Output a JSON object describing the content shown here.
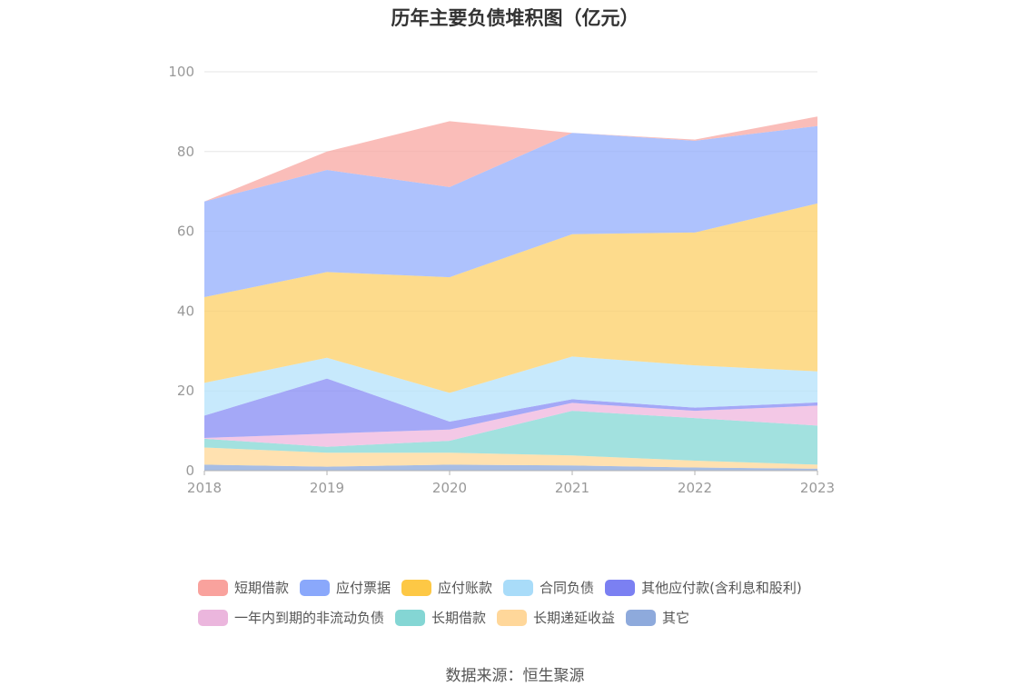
{
  "chart_data": {
    "type": "area",
    "stacked": true,
    "title": "历年主要负债堆积图（亿元）",
    "x": [
      "2018",
      "2019",
      "2020",
      "2021",
      "2022",
      "2023"
    ],
    "ylim": [
      0,
      100
    ],
    "yticks": [
      0,
      20,
      40,
      60,
      80,
      100
    ],
    "grid": true,
    "legend_position": "bottom",
    "series": [
      {
        "name": "其它",
        "color": "#8eaadc",
        "values": [
          1.5,
          1.0,
          1.5,
          1.3,
          0.8,
          0.5
        ]
      },
      {
        "name": "长期递延收益",
        "color": "#ffd99a",
        "values": [
          4.3,
          3.5,
          3.0,
          2.5,
          1.7,
          1.0
        ]
      },
      {
        "name": "长期借款",
        "color": "#88d8d6",
        "values": [
          2.2,
          1.5,
          3.0,
          11.2,
          10.7,
          9.8
        ]
      },
      {
        "name": "一年内到期的非流动负债",
        "color": "#efb9df",
        "values": [
          0.2,
          3.3,
          2.8,
          2.0,
          1.8,
          5.0
        ]
      },
      {
        "name": "其他应付款(含利息和股利)",
        "color": "#8a8ff5",
        "values": [
          5.6,
          13.8,
          2.0,
          0.9,
          0.8,
          0.8
        ]
      },
      {
        "name": "合同负债",
        "color": "#b7e3fb",
        "values": [
          8.2,
          5.2,
          7.2,
          10.7,
          10.6,
          7.8
        ]
      },
      {
        "name": "应付账款",
        "color": "#fdd16c",
        "values": [
          21.5,
          21.5,
          29.0,
          30.7,
          33.3,
          42.1
        ]
      },
      {
        "name": "应付票据",
        "color": "#97b1fd",
        "values": [
          24.0,
          25.6,
          22.6,
          25.4,
          23.0,
          19.4
        ]
      },
      {
        "name": "短期借款",
        "color": "#f9aaa5",
        "values": [
          0.0,
          4.6,
          16.5,
          0.0,
          0.3,
          2.4
        ]
      }
    ]
  },
  "legend": {
    "rows": [
      [
        {
          "label": "短期借款",
          "color": "#f9a29d"
        },
        {
          "label": "应付票据",
          "color": "#8aa8fb"
        },
        {
          "label": "应付账款",
          "color": "#fdc845"
        },
        {
          "label": "合同负债",
          "color": "#a9dcf9"
        },
        {
          "label": "其他应付款(含利息和股利)",
          "color": "#7b80f2"
        }
      ],
      [
        {
          "label": "一年内到期的非流动负债",
          "color": "#ebb6dd"
        },
        {
          "label": "长期借款",
          "color": "#84d6d4"
        },
        {
          "label": "长期递延收益",
          "color": "#ffd79a"
        },
        {
          "label": "其它",
          "color": "#8eaadc"
        }
      ]
    ]
  },
  "source": "数据来源：恒生聚源"
}
